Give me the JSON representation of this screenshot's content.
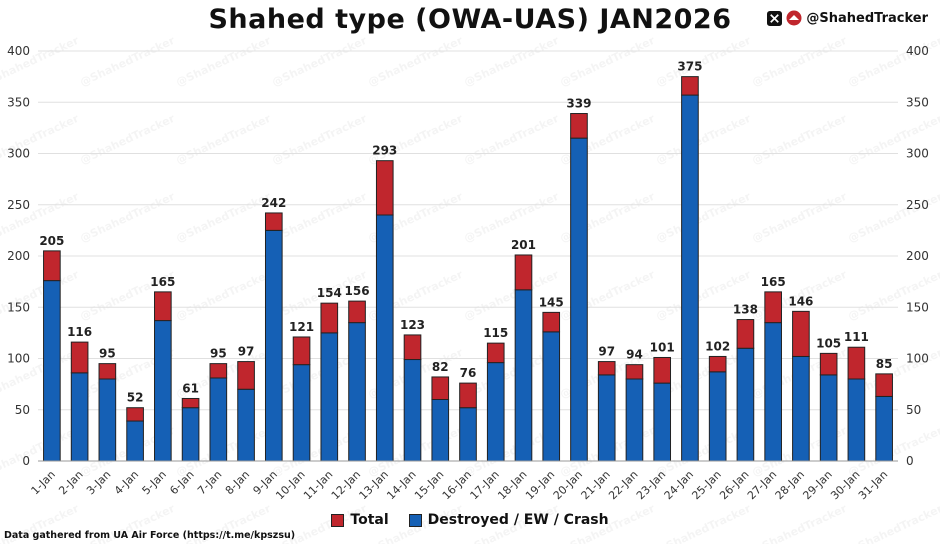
{
  "header": {
    "title": "Shahed type (OWA-UAS) JAN2026",
    "brand_handle": "@ShahedTracker",
    "brand_icons": [
      "x-logo-icon",
      "shahed-tracker-logo-icon"
    ]
  },
  "footer": {
    "source": "Data gathered from UA Air Force (https://t.me/kpszsu)"
  },
  "colors": {
    "total": "#c0262d",
    "destroyed": "#1560b5",
    "outline": "#222222",
    "grid": "#e0e0e0"
  },
  "chart_data": {
    "type": "bar",
    "stacked": true,
    "title": "Shahed type (OWA-UAS) JAN2026",
    "xlabel": "",
    "ylabel": "",
    "ylim": [
      0,
      400
    ],
    "yticks": [
      0,
      50,
      100,
      150,
      200,
      250,
      300,
      350,
      400
    ],
    "y_axis_both_sides": true,
    "grid": "horizontal",
    "legend_position": "bottom-center",
    "categories": [
      "1-Jan",
      "2-Jan",
      "3-Jan",
      "4-Jan",
      "5-Jan",
      "6-Jan",
      "7-Jan",
      "8-Jan",
      "9-Jan",
      "10-Jan",
      "11-Jan",
      "12-Jan",
      "13-Jan",
      "14-Jan",
      "15-Jan",
      "16-Jan",
      "17-Jan",
      "18-Jan",
      "19-Jan",
      "20-Jan",
      "21-Jan",
      "22-Jan",
      "23-Jan",
      "24-Jan",
      "25-Jan",
      "26-Jan",
      "27-Jan",
      "28-Jan",
      "29-Jan",
      "30-Jan",
      "31-Jan"
    ],
    "series": [
      {
        "name": "Destroyed / EW / Crash",
        "values": [
          176,
          86,
          80,
          39,
          137,
          52,
          81,
          70,
          225,
          94,
          125,
          135,
          240,
          99,
          60,
          52,
          96,
          167,
          126,
          315,
          84,
          80,
          76,
          357,
          87,
          110,
          135,
          102,
          84,
          80,
          63
        ]
      },
      {
        "name": "Total",
        "values": [
          205,
          116,
          95,
          52,
          165,
          61,
          95,
          97,
          242,
          121,
          154,
          156,
          293,
          123,
          82,
          76,
          115,
          201,
          145,
          339,
          97,
          94,
          101,
          375,
          102,
          138,
          165,
          146,
          105,
          111,
          85
        ]
      }
    ],
    "data_labels": [
      205,
      116,
      95,
      52,
      165,
      61,
      95,
      97,
      242,
      121,
      154,
      156,
      293,
      123,
      82,
      76,
      115,
      201,
      145,
      339,
      97,
      94,
      101,
      375,
      102,
      138,
      165,
      146,
      105,
      111,
      85
    ],
    "legend": [
      "Total",
      "Destroyed / EW / Crash"
    ]
  }
}
